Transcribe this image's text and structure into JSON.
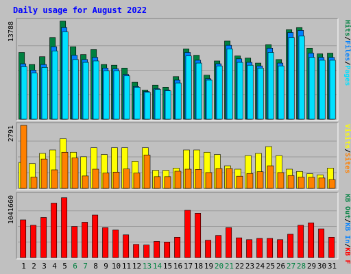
{
  "colors": {
    "page_bg": "#c0c0c0",
    "panel_bg": "#c0c0c0",
    "title": "#0000ff",
    "grid": "#9a9a9a",
    "hits": "#008040",
    "files": "#0080ff",
    "pages": "#00e0ff",
    "visits": "#ffff00",
    "sites": "#ff8000",
    "kbin": "#0080ff",
    "kbout": "#008040",
    "kbf": "#ff0000",
    "weekday_label": "#000000",
    "weekend_label": "#008040"
  },
  "chart_data": [
    {
      "type": "bar",
      "title": "Daily usage for August 2022",
      "panel": "pages-files-hits",
      "y_max_label": "13788",
      "ylim": [
        0,
        13788
      ],
      "grid": true,
      "legend": {
        "placement": "right",
        "entries": [
          {
            "label": "Pages",
            "color_key": "pages"
          },
          {
            "label": "/",
            "color_key": "weekday_label"
          },
          {
            "label": "Files",
            "color_key": "files"
          },
          {
            "label": "/",
            "color_key": "weekday_label"
          },
          {
            "label": "Hits",
            "color_key": "hits"
          }
        ]
      },
      "categories": [
        "1",
        "2",
        "3",
        "4",
        "5",
        "6",
        "7",
        "8",
        "9",
        "10",
        "11",
        "12",
        "13",
        "14",
        "15",
        "16",
        "17",
        "18",
        "19",
        "20",
        "21",
        "22",
        "23",
        "24",
        "25",
        "26",
        "27",
        "28",
        "29",
        "30",
        "31"
      ],
      "series": [
        {
          "name": "Hits",
          "color_key": "hits",
          "values": [
            9400,
            7700,
            8800,
            11500,
            13800,
            10200,
            9100,
            9800,
            7700,
            7600,
            7200,
            5200,
            4100,
            4800,
            4500,
            6000,
            9900,
            9000,
            6200,
            8200,
            11000,
            8900,
            8600,
            7900,
            10500,
            8400,
            12600,
            12900,
            10000,
            9200,
            9300
          ]
        },
        {
          "name": "Files",
          "color_key": "files",
          "values": [
            7800,
            6900,
            7700,
            10200,
            12900,
            9000,
            8400,
            8700,
            7200,
            7100,
            6300,
            4600,
            3900,
            4300,
            4100,
            5500,
            9400,
            8300,
            5700,
            7800,
            10400,
            8500,
            8000,
            7500,
            10000,
            7900,
            12200,
            12500,
            9300,
            8700,
            8700
          ]
        },
        {
          "name": "Pages",
          "color_key": "pages",
          "values": [
            7400,
            6500,
            7300,
            9600,
            12300,
            8400,
            8000,
            8200,
            6800,
            6800,
            6100,
            4500,
            3800,
            4200,
            4000,
            5100,
            8900,
            7900,
            5500,
            7500,
            9900,
            8000,
            7600,
            7200,
            9400,
            7500,
            11500,
            11700,
            8700,
            8300,
            8300
          ]
        }
      ]
    },
    {
      "type": "bar",
      "panel": "visits-sites",
      "y_max_label": "2791",
      "ylim": [
        0,
        2791
      ],
      "grid": true,
      "legend": {
        "placement": "right",
        "entries": [
          {
            "label": "Sites",
            "color_key": "sites"
          },
          {
            "label": "/",
            "color_key": "weekday_label"
          },
          {
            "label": "Visits",
            "color_key": "visits"
          }
        ]
      },
      "categories": [
        "1",
        "2",
        "3",
        "4",
        "5",
        "6",
        "7",
        "8",
        "9",
        "10",
        "11",
        "12",
        "13",
        "14",
        "15",
        "16",
        "17",
        "18",
        "19",
        "20",
        "21",
        "22",
        "23",
        "24",
        "25",
        "26",
        "27",
        "28",
        "29",
        "30",
        "31"
      ],
      "series": [
        {
          "name": "Visits",
          "color_key": "visits",
          "values": [
            1150,
            1100,
            1550,
            1700,
            2200,
            1600,
            1400,
            1800,
            1500,
            1800,
            1800,
            1200,
            1800,
            800,
            800,
            900,
            1700,
            1700,
            1600,
            1500,
            1000,
            850,
            1450,
            1550,
            1850,
            1450,
            850,
            750,
            650,
            600,
            900
          ]
        },
        {
          "name": "Sites",
          "color_key": "sites",
          "values": [
            2791,
            500,
            1300,
            820,
            1600,
            1350,
            550,
            850,
            680,
            720,
            860,
            680,
            1480,
            520,
            520,
            760,
            850,
            840,
            700,
            880,
            880,
            540,
            660,
            740,
            1000,
            700,
            570,
            500,
            490,
            460,
            390
          ]
        }
      ]
    },
    {
      "type": "bar",
      "panel": "kbytes",
      "y_max_label": "1041660",
      "ylim": [
        0,
        1041660
      ],
      "grid": true,
      "legend": {
        "placement": "right",
        "entries": [
          {
            "label": "KB F",
            "color_key": "kbf"
          },
          {
            "label": "/",
            "color_key": "weekday_label"
          },
          {
            "label": "KB In",
            "color_key": "kbin"
          },
          {
            "label": "/",
            "color_key": "weekday_label"
          },
          {
            "label": "KB Out",
            "color_key": "kbout"
          }
        ]
      },
      "categories": [
        "1",
        "2",
        "3",
        "4",
        "5",
        "6",
        "7",
        "8",
        "9",
        "10",
        "11",
        "12",
        "13",
        "14",
        "15",
        "16",
        "17",
        "18",
        "19",
        "20",
        "21",
        "22",
        "23",
        "24",
        "25",
        "26",
        "27",
        "28",
        "29",
        "30",
        "31"
      ],
      "series": [
        {
          "name": "KB F",
          "color_key": "kbf",
          "values": [
            630000,
            540000,
            670000,
            910000,
            1000000,
            520000,
            590000,
            710000,
            500000,
            460000,
            380000,
            220000,
            210000,
            270000,
            260000,
            340000,
            790000,
            740000,
            290000,
            370000,
            500000,
            330000,
            300000,
            320000,
            320000,
            300000,
            390000,
            540000,
            580000,
            480000,
            340000
          ]
        }
      ]
    }
  ],
  "x_axis": {
    "labels": [
      "1",
      "2",
      "3",
      "4",
      "5",
      "6",
      "7",
      "8",
      "9",
      "10",
      "11",
      "12",
      "13",
      "14",
      "15",
      "16",
      "17",
      "18",
      "19",
      "20",
      "21",
      "22",
      "23",
      "24",
      "25",
      "26",
      "27",
      "28",
      "29",
      "30",
      "31"
    ],
    "weekend_days": [
      "6",
      "7",
      "13",
      "14",
      "20",
      "21",
      "27",
      "28"
    ]
  }
}
